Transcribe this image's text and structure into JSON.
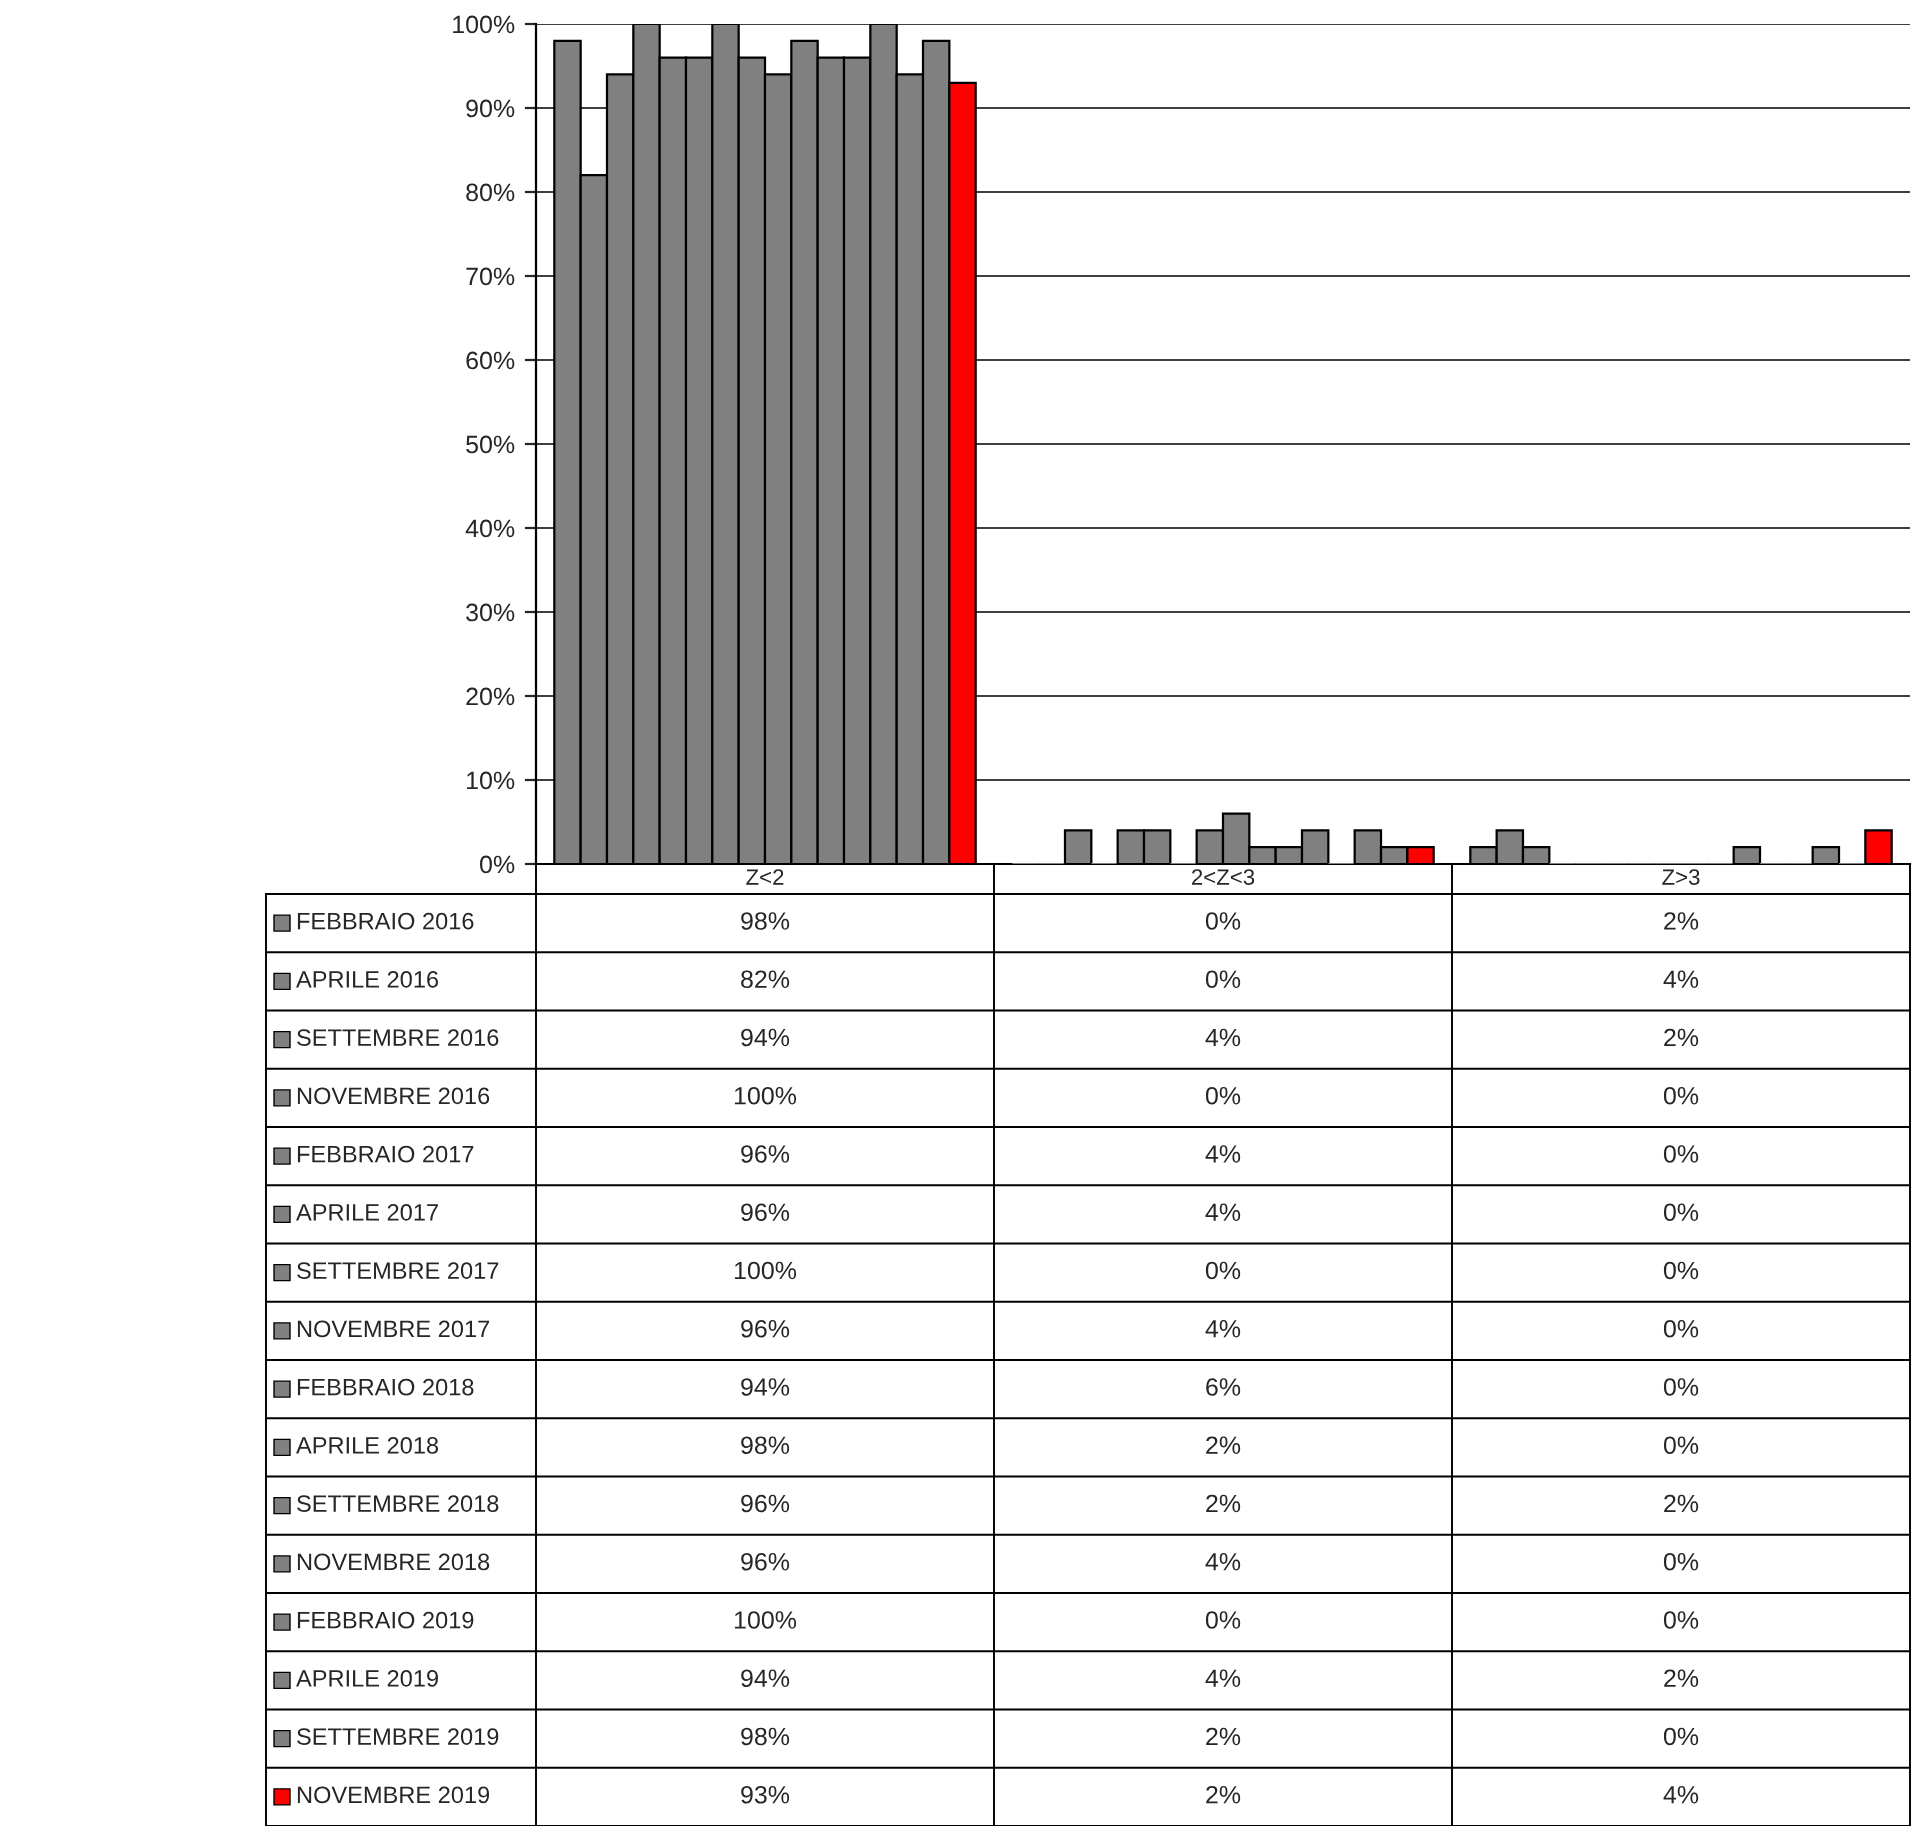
{
  "chart_data": {
    "type": "bar",
    "categories": [
      "Z<2",
      "2<Z<3",
      "Z>3"
    ],
    "series": [
      {
        "name": "FEBBRAIO 2016",
        "color": "#808080",
        "values": [
          98,
          0,
          2
        ],
        "value_labels": [
          "98%",
          "0%",
          "2%"
        ]
      },
      {
        "name": "APRILE 2016",
        "color": "#808080",
        "values": [
          82,
          0,
          4
        ],
        "value_labels": [
          "82%",
          "0%",
          "4%"
        ]
      },
      {
        "name": "SETTEMBRE 2016",
        "color": "#808080",
        "values": [
          94,
          4,
          2
        ],
        "value_labels": [
          "94%",
          "4%",
          "2%"
        ]
      },
      {
        "name": "NOVEMBRE 2016",
        "color": "#808080",
        "values": [
          100,
          0,
          0
        ],
        "value_labels": [
          "100%",
          "0%",
          "0%"
        ]
      },
      {
        "name": "FEBBRAIO 2017",
        "color": "#808080",
        "values": [
          96,
          4,
          0
        ],
        "value_labels": [
          "96%",
          "4%",
          "0%"
        ]
      },
      {
        "name": "APRILE 2017",
        "color": "#808080",
        "values": [
          96,
          4,
          0
        ],
        "value_labels": [
          "96%",
          "4%",
          "0%"
        ]
      },
      {
        "name": "SETTEMBRE 2017",
        "color": "#808080",
        "values": [
          100,
          0,
          0
        ],
        "value_labels": [
          "100%",
          "0%",
          "0%"
        ]
      },
      {
        "name": "NOVEMBRE 2017",
        "color": "#808080",
        "values": [
          96,
          4,
          0
        ],
        "value_labels": [
          "96%",
          "4%",
          "0%"
        ]
      },
      {
        "name": "FEBBRAIO 2018",
        "color": "#808080",
        "values": [
          94,
          6,
          0
        ],
        "value_labels": [
          "94%",
          "6%",
          "0%"
        ]
      },
      {
        "name": "APRILE 2018",
        "color": "#808080",
        "values": [
          98,
          2,
          0
        ],
        "value_labels": [
          "98%",
          "2%",
          "0%"
        ]
      },
      {
        "name": "SETTEMBRE 2018",
        "color": "#808080",
        "values": [
          96,
          2,
          2
        ],
        "value_labels": [
          "96%",
          "2%",
          "2%"
        ]
      },
      {
        "name": "NOVEMBRE 2018",
        "color": "#808080",
        "values": [
          96,
          4,
          0
        ],
        "value_labels": [
          "96%",
          "4%",
          "0%"
        ]
      },
      {
        "name": "FEBBRAIO 2019",
        "color": "#808080",
        "values": [
          100,
          0,
          0
        ],
        "value_labels": [
          "100%",
          "0%",
          "0%"
        ]
      },
      {
        "name": "APRILE 2019",
        "color": "#808080",
        "values": [
          94,
          4,
          2
        ],
        "value_labels": [
          "94%",
          "4%",
          "2%"
        ]
      },
      {
        "name": "SETTEMBRE 2019",
        "color": "#808080",
        "values": [
          98,
          2,
          0
        ],
        "value_labels": [
          "98%",
          "2%",
          "0%"
        ]
      },
      {
        "name": "NOVEMBRE 2019",
        "color": "#ff0000",
        "values": [
          93,
          2,
          4
        ],
        "value_labels": [
          "93%",
          "2%",
          "4%"
        ]
      }
    ],
    "ylim": [
      0,
      100
    ],
    "yticks": [
      {
        "value": 0,
        "label": "0%"
      },
      {
        "value": 10,
        "label": "10%"
      },
      {
        "value": 20,
        "label": "20%"
      },
      {
        "value": 30,
        "label": "30%"
      },
      {
        "value": 40,
        "label": "40%"
      },
      {
        "value": 50,
        "label": "50%"
      },
      {
        "value": 60,
        "label": "60%"
      },
      {
        "value": 70,
        "label": "70%"
      },
      {
        "value": 80,
        "label": "80%"
      },
      {
        "value": 90,
        "label": "90%"
      },
      {
        "value": 100,
        "label": "100%"
      }
    ],
    "grid": "y",
    "legend": "bottom left"
  }
}
